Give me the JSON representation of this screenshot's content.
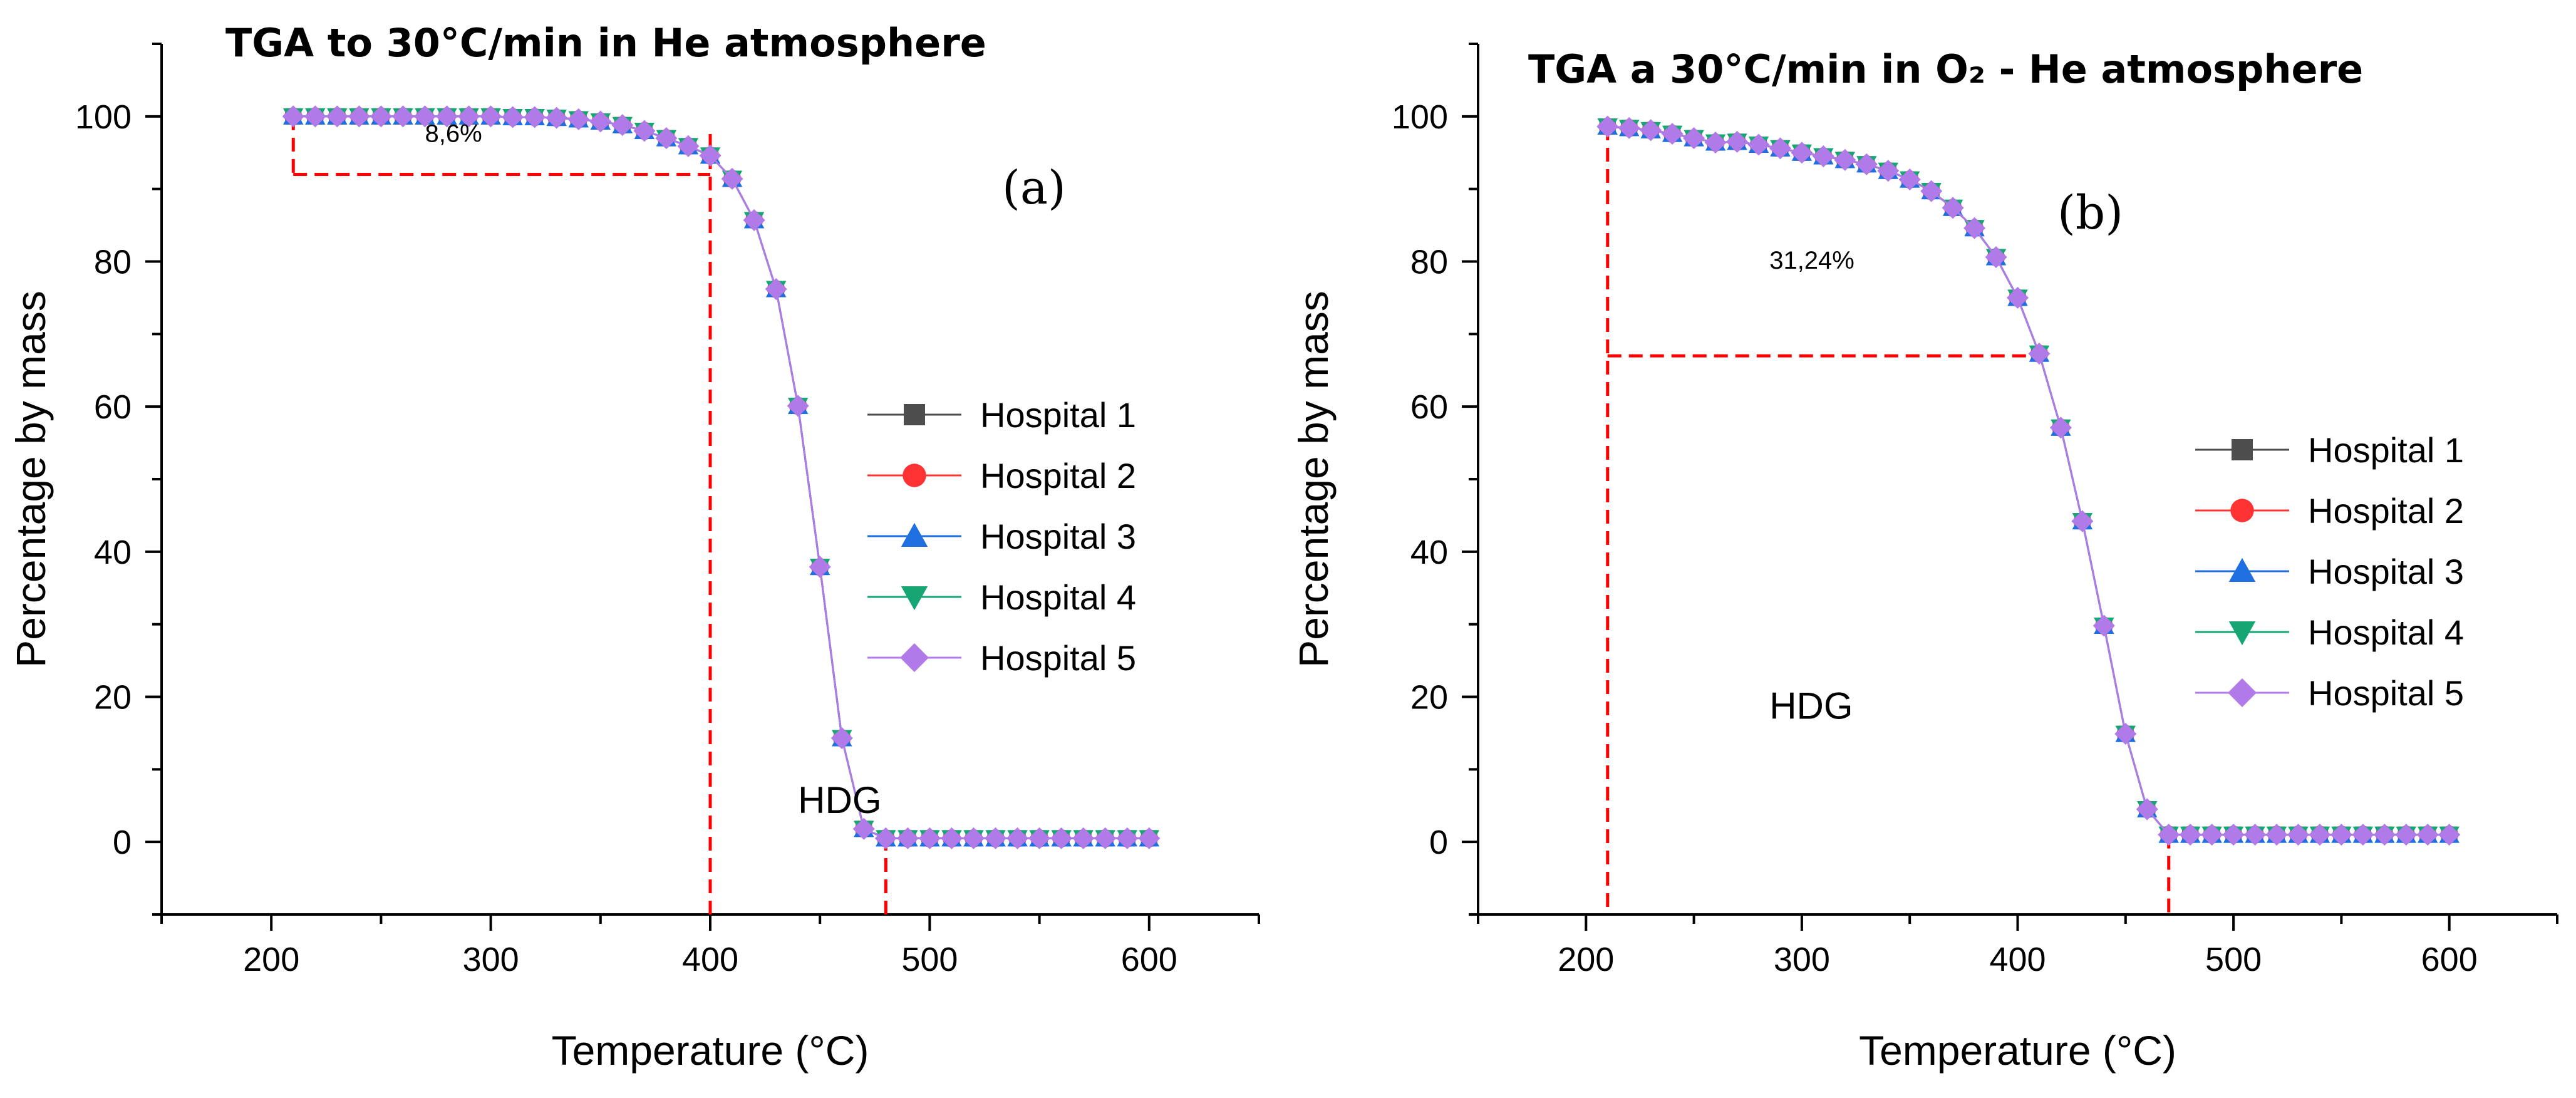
{
  "colors": {
    "hospital_1": "#4d4d4d",
    "hospital_2": "#ff3333",
    "hospital_3": "#1f6fe0",
    "hospital_4": "#16a673",
    "hospital_5": "#b07ae8",
    "guide": "#ff0000",
    "axis": "#000000"
  },
  "legend": [
    {
      "name": "Hospital 1",
      "marker": "square-icon",
      "color_key": "hospital_1"
    },
    {
      "name": "Hospital 2",
      "marker": "circle-icon",
      "color_key": "hospital_2"
    },
    {
      "name": "Hospital 3",
      "marker": "triangle-up-icon",
      "color_key": "hospital_3"
    },
    {
      "name": "Hospital 4",
      "marker": "triangle-down-icon",
      "color_key": "hospital_4"
    },
    {
      "name": "Hospital 5",
      "marker": "diamond-icon",
      "color_key": "hospital_5"
    }
  ],
  "chart_data": [
    {
      "type": "line",
      "panel_label": "(a)",
      "title": "TGA to 30°C/min in He atmosphere",
      "xlabel": "Temperature (°C)",
      "ylabel": "Percentage by mass",
      "xlim": [
        150,
        650
      ],
      "ylim": [
        -10,
        110
      ],
      "xticks": [
        200,
        300,
        400,
        500,
        600
      ],
      "yticks": [
        0,
        20,
        40,
        60,
        80,
        100
      ],
      "x": [
        210,
        220,
        230,
        240,
        250,
        260,
        270,
        280,
        290,
        300,
        310,
        320,
        330,
        340,
        350,
        360,
        370,
        380,
        390,
        400,
        410,
        420,
        430,
        440,
        450,
        460,
        470,
        480,
        490,
        500,
        510,
        520,
        530,
        540,
        550,
        560,
        570,
        580,
        590,
        600
      ],
      "series": [
        {
          "name": "Hospital 1",
          "values": [
            100,
            100,
            100,
            100,
            100,
            100,
            100,
            100,
            100,
            100,
            99.9,
            99.9,
            99.8,
            99.6,
            99.3,
            98.8,
            98.0,
            97.0,
            95.9,
            94.6,
            91.4,
            85.7,
            76.2,
            60.1,
            37.9,
            14.3,
            1.8,
            0.5,
            0.5,
            0.5,
            0.5,
            0.5,
            0.5,
            0.5,
            0.5,
            0.5,
            0.5,
            0.5,
            0.5,
            0.5
          ]
        },
        {
          "name": "Hospital 2",
          "values": [
            100,
            100,
            100,
            100,
            100,
            100,
            100,
            100,
            100,
            100,
            99.9,
            99.9,
            99.8,
            99.6,
            99.3,
            98.8,
            98.0,
            97.0,
            95.9,
            94.6,
            91.4,
            85.7,
            76.2,
            60.1,
            37.9,
            14.3,
            1.8,
            0.5,
            0.5,
            0.5,
            0.5,
            0.5,
            0.5,
            0.5,
            0.5,
            0.5,
            0.5,
            0.5,
            0.5,
            0.5
          ]
        },
        {
          "name": "Hospital 3",
          "values": [
            100,
            100,
            100,
            100,
            100,
            100,
            100,
            100,
            100,
            100,
            99.9,
            99.9,
            99.8,
            99.6,
            99.3,
            98.8,
            98.0,
            97.0,
            95.9,
            94.6,
            91.4,
            85.7,
            76.2,
            60.1,
            37.9,
            14.3,
            1.8,
            0.5,
            0.5,
            0.5,
            0.5,
            0.5,
            0.5,
            0.5,
            0.5,
            0.5,
            0.5,
            0.5,
            0.5,
            0.5
          ]
        },
        {
          "name": "Hospital 4",
          "values": [
            100,
            100,
            100,
            100,
            100,
            100,
            100,
            100,
            100,
            100,
            99.9,
            99.9,
            99.8,
            99.6,
            99.3,
            98.8,
            98.0,
            97.0,
            95.9,
            94.6,
            91.4,
            85.7,
            76.2,
            60.1,
            37.9,
            14.3,
            1.8,
            0.5,
            0.5,
            0.5,
            0.5,
            0.5,
            0.5,
            0.5,
            0.5,
            0.5,
            0.5,
            0.5,
            0.5,
            0.5
          ]
        },
        {
          "name": "Hospital 5",
          "values": [
            100,
            100,
            100,
            100,
            100,
            100,
            100,
            100,
            100,
            100,
            99.9,
            99.9,
            99.8,
            99.6,
            99.3,
            98.8,
            98.0,
            97.0,
            95.9,
            94.6,
            91.4,
            85.7,
            76.2,
            60.1,
            37.9,
            14.3,
            1.8,
            0.5,
            0.5,
            0.5,
            0.5,
            0.5,
            0.5,
            0.5,
            0.5,
            0.5,
            0.5,
            0.5,
            0.5,
            0.5
          ]
        }
      ],
      "guides": [
        {
          "from": [
            210,
            100
          ],
          "to": [
            210,
            92
          ]
        },
        {
          "from": [
            210,
            92
          ],
          "to": [
            400,
            92
          ]
        },
        {
          "from": [
            400,
            -10
          ],
          "to": [
            400,
            98
          ]
        },
        {
          "from": [
            480,
            -10
          ],
          "to": [
            480,
            0.5
          ]
        }
      ],
      "annotations": [
        {
          "text": "8,6%",
          "x": 270,
          "y": 96.5,
          "kind": "note"
        },
        {
          "text": "HDG",
          "x": 440,
          "y": 4,
          "kind": "hdg"
        }
      ],
      "legend_position": "center-right"
    },
    {
      "type": "line",
      "panel_label": "(b)",
      "title": "TGA a 30°C/min in O₂ - He atmosphere",
      "xlabel": "Temperature (°C)",
      "ylabel": "Percentage by mass",
      "xlim": [
        150,
        650
      ],
      "ylim": [
        -10,
        110
      ],
      "xticks": [
        200,
        300,
        400,
        500,
        600
      ],
      "yticks": [
        0,
        20,
        40,
        60,
        80,
        100
      ],
      "x": [
        210,
        220,
        230,
        240,
        250,
        260,
        270,
        280,
        290,
        300,
        310,
        320,
        330,
        340,
        350,
        360,
        370,
        380,
        390,
        400,
        410,
        420,
        430,
        440,
        450,
        460,
        470,
        480,
        490,
        500,
        510,
        520,
        530,
        540,
        550,
        560,
        570,
        580,
        590,
        600
      ],
      "series": [
        {
          "name": "Hospital 1",
          "values": [
            98.6,
            98.4,
            98.1,
            97.6,
            97.0,
            96.4,
            96.5,
            96.1,
            95.6,
            95.0,
            94.5,
            94.0,
            93.4,
            92.5,
            91.3,
            89.7,
            87.4,
            84.6,
            80.6,
            75.0,
            67.3,
            57.1,
            44.2,
            29.8,
            14.9,
            4.5,
            1.0,
            1.0,
            1.0,
            1.0,
            1.0,
            1.0,
            1.0,
            1.0,
            1.0,
            1.0,
            1.0,
            1.0,
            1.0,
            1.0
          ]
        },
        {
          "name": "Hospital 2",
          "values": [
            98.6,
            98.4,
            98.1,
            97.6,
            97.0,
            96.4,
            96.5,
            96.1,
            95.6,
            95.0,
            94.5,
            94.0,
            93.4,
            92.5,
            91.3,
            89.7,
            87.4,
            84.6,
            80.6,
            75.0,
            67.3,
            57.1,
            44.2,
            29.8,
            14.9,
            4.5,
            1.0,
            1.0,
            1.0,
            1.0,
            1.0,
            1.0,
            1.0,
            1.0,
            1.0,
            1.0,
            1.0,
            1.0,
            1.0,
            1.0
          ]
        },
        {
          "name": "Hospital 3",
          "values": [
            98.6,
            98.4,
            98.1,
            97.6,
            97.0,
            96.4,
            96.5,
            96.1,
            95.6,
            95.0,
            94.5,
            94.0,
            93.4,
            92.5,
            91.3,
            89.7,
            87.4,
            84.6,
            80.6,
            75.0,
            67.3,
            57.1,
            44.2,
            29.8,
            14.9,
            4.5,
            1.0,
            1.0,
            1.0,
            1.0,
            1.0,
            1.0,
            1.0,
            1.0,
            1.0,
            1.0,
            1.0,
            1.0,
            1.0,
            1.0
          ]
        },
        {
          "name": "Hospital 4",
          "values": [
            98.6,
            98.4,
            98.1,
            97.6,
            97.0,
            96.4,
            96.5,
            96.1,
            95.6,
            95.0,
            94.5,
            94.0,
            93.4,
            92.5,
            91.3,
            89.7,
            87.4,
            84.6,
            80.6,
            75.0,
            67.3,
            57.1,
            44.2,
            29.8,
            14.9,
            4.5,
            1.0,
            1.0,
            1.0,
            1.0,
            1.0,
            1.0,
            1.0,
            1.0,
            1.0,
            1.0,
            1.0,
            1.0,
            1.0,
            1.0
          ]
        },
        {
          "name": "Hospital 5",
          "values": [
            98.6,
            98.4,
            98.1,
            97.6,
            97.0,
            96.4,
            96.5,
            96.1,
            95.6,
            95.0,
            94.5,
            94.0,
            93.4,
            92.5,
            91.3,
            89.7,
            87.4,
            84.6,
            80.6,
            75.0,
            67.3,
            57.1,
            44.2,
            29.8,
            14.9,
            4.5,
            1.0,
            1.0,
            1.0,
            1.0,
            1.0,
            1.0,
            1.0,
            1.0,
            1.0,
            1.0,
            1.0,
            1.0,
            1.0,
            1.0
          ]
        }
      ],
      "guides": [
        {
          "from": [
            210,
            98.6
          ],
          "to": [
            210,
            -10
          ]
        },
        {
          "from": [
            210,
            67
          ],
          "to": [
            410,
            67
          ]
        },
        {
          "from": [
            470,
            1
          ],
          "to": [
            470,
            -10
          ]
        }
      ],
      "annotations": [
        {
          "text": "31,24%",
          "x": 285,
          "y": 79,
          "kind": "note"
        },
        {
          "text": "HDG",
          "x": 285,
          "y": 17,
          "kind": "hdg"
        }
      ],
      "legend_position": "center-right"
    }
  ]
}
